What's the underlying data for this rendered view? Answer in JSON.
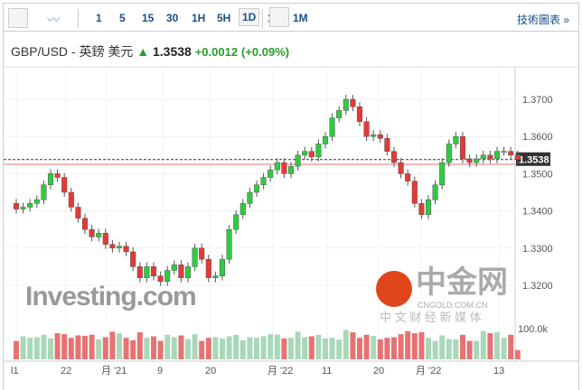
{
  "toolbar": {
    "intervals": [
      "1",
      "5",
      "15",
      "30",
      "1H",
      "5H",
      "1D",
      "1W",
      "1M"
    ],
    "active": "1D",
    "tech_chart_link": "技術圖表 »"
  },
  "header": {
    "symbol": "GBP/USD - 英鎊 美元",
    "price": "1.3538",
    "change": "+0.0012",
    "change_pct": "(+0.09%)"
  },
  "watermark": {
    "logo": "Investing.com",
    "cngold": "中金网",
    "cngold_url": "CNGOLD.COM.CN",
    "cngold_tag": "中 文 财 经 新 媒 体"
  },
  "colors": {
    "up": "#2ecc40",
    "down": "#e53935",
    "vol_up": "#a8d8b9",
    "vol_down": "#e57373"
  },
  "chart_data": {
    "type": "candlestick",
    "y_ticks": [
      "1.3700",
      "1.3600",
      "1.3500",
      "1.3400",
      "1.3300",
      "1.3200"
    ],
    "ylim": [
      1.3165,
      1.376
    ],
    "current_price": "1.3538",
    "x_labels": [
      "l1",
      "22",
      "月 '21",
      "9",
      "20",
      "月 '22",
      "11",
      "20",
      "月 '22",
      "13"
    ],
    "volume_label": "100.0k",
    "closes": [
      1.3405,
      1.341,
      1.342,
      1.343,
      1.347,
      1.35,
      1.349,
      1.345,
      1.341,
      1.338,
      1.335,
      1.333,
      1.334,
      1.331,
      1.33,
      1.3305,
      1.329,
      1.325,
      1.322,
      1.325,
      1.3225,
      1.321,
      1.324,
      1.3255,
      1.322,
      1.325,
      1.33,
      1.327,
      1.322,
      1.3225,
      1.327,
      1.335,
      1.339,
      1.342,
      1.345,
      1.347,
      1.349,
      1.351,
      1.353,
      1.35,
      1.352,
      1.355,
      1.356,
      1.3545,
      1.358,
      1.36,
      1.365,
      1.367,
      1.37,
      1.368,
      1.364,
      1.36,
      1.3605,
      1.3595,
      1.356,
      1.353,
      1.35,
      1.348,
      1.342,
      1.339,
      1.343,
      1.347,
      1.353,
      1.358,
      1.36,
      1.354,
      1.353,
      1.354,
      1.355,
      1.354,
      1.356,
      1.356,
      1.355,
      1.3538
    ],
    "volumes": [
      60,
      75,
      70,
      72,
      80,
      68,
      85,
      82,
      70,
      78,
      76,
      80,
      65,
      72,
      90,
      85,
      70,
      62,
      88,
      70,
      75,
      60,
      80,
      72,
      78,
      66,
      82,
      60,
      70,
      72,
      68,
      75,
      80,
      62,
      72,
      70,
      75,
      82,
      80,
      68,
      70,
      90,
      72,
      75,
      80,
      68,
      70,
      64,
      96,
      88,
      70,
      80,
      76,
      65,
      70,
      72,
      82,
      92,
      85,
      88,
      70,
      60,
      78,
      66,
      65,
      80,
      60,
      60,
      92,
      85,
      88,
      70,
      80,
      30
    ]
  }
}
